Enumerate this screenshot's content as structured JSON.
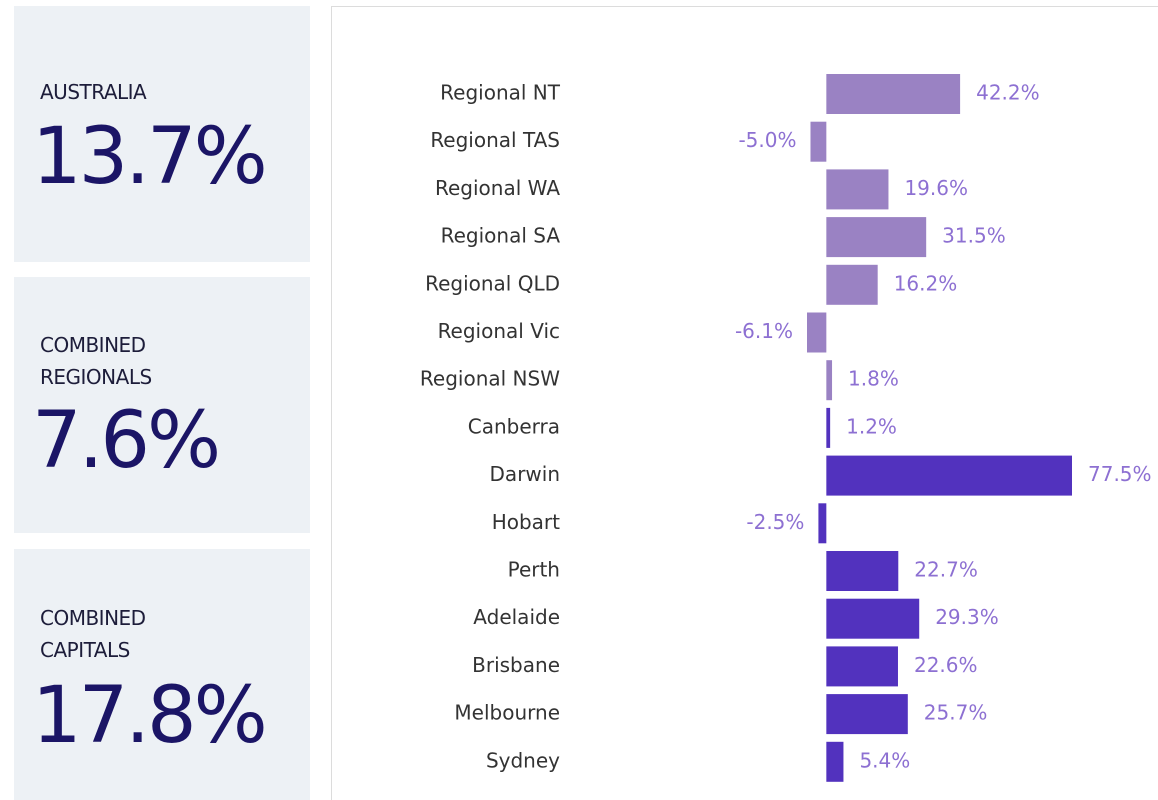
{
  "cards": [
    {
      "label": "AUSTRALIA",
      "value": "13.7%"
    },
    {
      "label": "COMBINED REGIONALS",
      "value": "7.6%"
    },
    {
      "label": "COMBINED CAPITALS",
      "value": "17.8%"
    }
  ],
  "chart_data": {
    "type": "hbar",
    "categories": [
      "Regional NT",
      "Regional TAS",
      "Regional WA",
      "Regional SA",
      "Regional QLD",
      "Regional Vic",
      "Regional NSW",
      "Canberra",
      "Darwin",
      "Hobart",
      "Perth",
      "Adelaide",
      "Brisbane",
      "Melbourne",
      "Sydney"
    ],
    "values": [
      42.2,
      -5.0,
      19.6,
      31.5,
      16.2,
      -6.1,
      1.8,
      1.2,
      77.5,
      -2.5,
      22.7,
      29.3,
      22.6,
      25.7,
      5.4
    ],
    "value_labels": [
      "42.2%",
      "-5.0%",
      "19.6%",
      "31.5%",
      "16.2%",
      "-6.1%",
      "1.8%",
      "1.2%",
      "77.5%",
      "-2.5%",
      "22.7%",
      "29.3%",
      "22.6%",
      "25.7%",
      "5.4%"
    ],
    "colors": [
      "#9a82c3",
      "#9a82c3",
      "#9a82c3",
      "#9a82c3",
      "#9a82c3",
      "#9a82c3",
      "#9a82c3",
      "#5232be",
      "#5232be",
      "#5232be",
      "#5232be",
      "#5232be",
      "#5232be",
      "#5232be",
      "#5232be"
    ],
    "label_color": "#8d70d2"
  }
}
